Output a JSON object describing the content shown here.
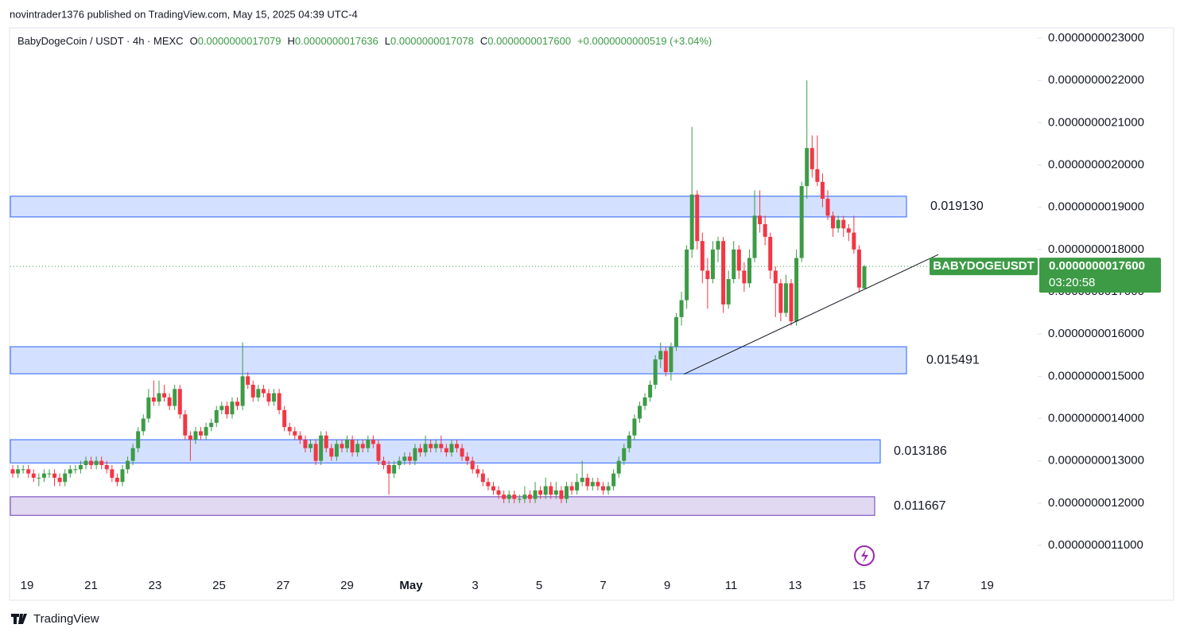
{
  "header": {
    "published": "novintrader1376 published on TradingView.com, May 15, 2025 04:39 UTC-4"
  },
  "footer": {
    "brand": "TradingView"
  },
  "chart_data": {
    "type": "candlestick",
    "symbol_line": "BabyDogeCoin / USDT · 4h · MEXC",
    "ohlc_legend": [
      {
        "key": "O",
        "value": "0.0000000017079"
      },
      {
        "key": "H",
        "value": "0.0000000017636"
      },
      {
        "key": "L",
        "value": "0.0000000017078"
      },
      {
        "key": "C",
        "value": "0.0000000017600"
      }
    ],
    "change": "+0.0000000000519 (+3.04%)",
    "up_color": "#3d9b46",
    "down_color": "#f23645",
    "ylim": [
      1.01e-09,
      2.35e-09
    ],
    "yticks": [
      {
        "value": 2.3e-09,
        "label": "0.0000000023000"
      },
      {
        "value": 2.2e-09,
        "label": "0.0000000022000"
      },
      {
        "value": 2.1e-09,
        "label": "0.0000000021000"
      },
      {
        "value": 2e-09,
        "label": "0.0000000020000"
      },
      {
        "value": 1.9e-09,
        "label": "0.0000000019000"
      },
      {
        "value": 1.8e-09,
        "label": "0.0000000018000"
      },
      {
        "value": 1.7e-09,
        "label": "0.0000000017000"
      },
      {
        "value": 1.6e-09,
        "label": "0.0000000016000"
      },
      {
        "value": 1.5e-09,
        "label": "0.0000000015000"
      },
      {
        "value": 1.4e-09,
        "label": "0.0000000014000"
      },
      {
        "value": 1.3e-09,
        "label": "0.0000000013000"
      },
      {
        "value": 1.2e-09,
        "label": "0.0000000012000"
      },
      {
        "value": 1.1e-09,
        "label": "0.0000000011000"
      }
    ],
    "xtick_labels": [
      "19",
      "21",
      "23",
      "25",
      "27",
      "29",
      "May",
      "3",
      "5",
      "7",
      "9",
      "11",
      "13",
      "15",
      "17",
      "19"
    ],
    "candles": [
      [
        1.28e-09,
        1.29e-09,
        1.26e-09,
        1.27e-09
      ],
      [
        1.27e-09,
        1.29e-09,
        1.26e-09,
        1.28e-09
      ],
      [
        1.28e-09,
        1.29e-09,
        1.27e-09,
        1.28e-09
      ],
      [
        1.28e-09,
        1.29e-09,
        1.26e-09,
        1.27e-09
      ],
      [
        1.27e-09,
        1.28e-09,
        1.25e-09,
        1.26e-09
      ],
      [
        1.26e-09,
        1.27e-09,
        1.24e-09,
        1.26e-09
      ],
      [
        1.26e-09,
        1.28e-09,
        1.25e-09,
        1.27e-09
      ],
      [
        1.27e-09,
        1.28e-09,
        1.26e-09,
        1.27e-09
      ],
      [
        1.27e-09,
        1.28e-09,
        1.24e-09,
        1.26e-09
      ],
      [
        1.26e-09,
        1.27e-09,
        1.24e-09,
        1.25e-09
      ],
      [
        1.25e-09,
        1.28e-09,
        1.24e-09,
        1.27e-09
      ],
      [
        1.27e-09,
        1.29e-09,
        1.26e-09,
        1.28e-09
      ],
      [
        1.28e-09,
        1.29e-09,
        1.27e-09,
        1.28e-09
      ],
      [
        1.28e-09,
        1.3e-09,
        1.27e-09,
        1.29e-09
      ],
      [
        1.29e-09,
        1.31e-09,
        1.28e-09,
        1.3e-09
      ],
      [
        1.3e-09,
        1.31e-09,
        1.28e-09,
        1.29e-09
      ],
      [
        1.29e-09,
        1.31e-09,
        1.28e-09,
        1.3e-09
      ],
      [
        1.3e-09,
        1.31e-09,
        1.28e-09,
        1.29e-09
      ],
      [
        1.29e-09,
        1.3e-09,
        1.27e-09,
        1.28e-09
      ],
      [
        1.28e-09,
        1.29e-09,
        1.25e-09,
        1.26e-09
      ],
      [
        1.26e-09,
        1.27e-09,
        1.24e-09,
        1.25e-09
      ],
      [
        1.25e-09,
        1.29e-09,
        1.24e-09,
        1.28e-09
      ],
      [
        1.28e-09,
        1.31e-09,
        1.27e-09,
        1.3e-09
      ],
      [
        1.3e-09,
        1.34e-09,
        1.29e-09,
        1.33e-09
      ],
      [
        1.33e-09,
        1.38e-09,
        1.32e-09,
        1.37e-09
      ],
      [
        1.37e-09,
        1.41e-09,
        1.36e-09,
        1.4e-09
      ],
      [
        1.4e-09,
        1.47e-09,
        1.39e-09,
        1.45e-09
      ],
      [
        1.45e-09,
        1.49e-09,
        1.43e-09,
        1.44e-09
      ],
      [
        1.44e-09,
        1.49e-09,
        1.43e-09,
        1.46e-09
      ],
      [
        1.46e-09,
        1.48e-09,
        1.44e-09,
        1.45e-09
      ],
      [
        1.45e-09,
        1.46e-09,
        1.42e-09,
        1.43e-09
      ],
      [
        1.43e-09,
        1.48e-09,
        1.42e-09,
        1.47e-09
      ],
      [
        1.47e-09,
        1.48e-09,
        1.4e-09,
        1.41e-09
      ],
      [
        1.41e-09,
        1.42e-09,
        1.35e-09,
        1.36e-09
      ],
      [
        1.36e-09,
        1.37e-09,
        1.3e-09,
        1.35e-09
      ],
      [
        1.35e-09,
        1.38e-09,
        1.34e-09,
        1.37e-09
      ],
      [
        1.37e-09,
        1.38e-09,
        1.35e-09,
        1.36e-09
      ],
      [
        1.36e-09,
        1.39e-09,
        1.35e-09,
        1.38e-09
      ],
      [
        1.38e-09,
        1.4e-09,
        1.37e-09,
        1.39e-09
      ],
      [
        1.39e-09,
        1.43e-09,
        1.38e-09,
        1.42e-09
      ],
      [
        1.42e-09,
        1.44e-09,
        1.41e-09,
        1.43e-09
      ],
      [
        1.43e-09,
        1.44e-09,
        1.4e-09,
        1.41e-09
      ],
      [
        1.41e-09,
        1.45e-09,
        1.4e-09,
        1.44e-09
      ],
      [
        1.44e-09,
        1.45e-09,
        1.42e-09,
        1.43e-09
      ],
      [
        1.43e-09,
        1.58e-09,
        1.42e-09,
        1.5e-09
      ],
      [
        1.5e-09,
        1.51e-09,
        1.47e-09,
        1.48e-09
      ],
      [
        1.48e-09,
        1.49e-09,
        1.44e-09,
        1.45e-09
      ],
      [
        1.45e-09,
        1.48e-09,
        1.44e-09,
        1.47e-09
      ],
      [
        1.47e-09,
        1.48e-09,
        1.45e-09,
        1.46e-09
      ],
      [
        1.46e-09,
        1.47e-09,
        1.43e-09,
        1.44e-09
      ],
      [
        1.44e-09,
        1.47e-09,
        1.43e-09,
        1.46e-09
      ],
      [
        1.46e-09,
        1.47e-09,
        1.41e-09,
        1.42e-09
      ],
      [
        1.42e-09,
        1.43e-09,
        1.37e-09,
        1.38e-09
      ],
      [
        1.38e-09,
        1.39e-09,
        1.36e-09,
        1.37e-09
      ],
      [
        1.37e-09,
        1.38e-09,
        1.35e-09,
        1.36e-09
      ],
      [
        1.36e-09,
        1.37e-09,
        1.34e-09,
        1.35e-09
      ],
      [
        1.35e-09,
        1.36e-09,
        1.32e-09,
        1.33e-09
      ],
      [
        1.33e-09,
        1.35e-09,
        1.32e-09,
        1.34e-09
      ],
      [
        1.34e-09,
        1.35e-09,
        1.29e-09,
        1.3e-09
      ],
      [
        1.3e-09,
        1.37e-09,
        1.29e-09,
        1.36e-09
      ],
      [
        1.36e-09,
        1.37e-09,
        1.32e-09,
        1.33e-09
      ],
      [
        1.33e-09,
        1.34e-09,
        1.3e-09,
        1.31e-09
      ],
      [
        1.31e-09,
        1.35e-09,
        1.3e-09,
        1.34e-09
      ],
      [
        1.34e-09,
        1.35e-09,
        1.32e-09,
        1.33e-09
      ],
      [
        1.33e-09,
        1.36e-09,
        1.32e-09,
        1.35e-09
      ],
      [
        1.35e-09,
        1.36e-09,
        1.31e-09,
        1.32e-09
      ],
      [
        1.32e-09,
        1.35e-09,
        1.31e-09,
        1.34e-09
      ],
      [
        1.34e-09,
        1.35e-09,
        1.32e-09,
        1.33e-09
      ],
      [
        1.33e-09,
        1.36e-09,
        1.32e-09,
        1.35e-09
      ],
      [
        1.35e-09,
        1.36e-09,
        1.33e-09,
        1.34e-09
      ],
      [
        1.34e-09,
        1.35e-09,
        1.29e-09,
        1.3e-09
      ],
      [
        1.3e-09,
        1.31e-09,
        1.28e-09,
        1.29e-09
      ],
      [
        1.29e-09,
        1.3e-09,
        1.22e-09,
        1.27e-09
      ],
      [
        1.27e-09,
        1.3e-09,
        1.26e-09,
        1.29e-09
      ],
      [
        1.29e-09,
        1.31e-09,
        1.28e-09,
        1.3e-09
      ],
      [
        1.3e-09,
        1.32e-09,
        1.29e-09,
        1.31e-09
      ],
      [
        1.31e-09,
        1.32e-09,
        1.29e-09,
        1.3e-09
      ],
      [
        1.3e-09,
        1.34e-09,
        1.29e-09,
        1.33e-09
      ],
      [
        1.33e-09,
        1.34e-09,
        1.31e-09,
        1.32e-09
      ],
      [
        1.32e-09,
        1.36e-09,
        1.31e-09,
        1.34e-09
      ],
      [
        1.34e-09,
        1.35e-09,
        1.32e-09,
        1.33e-09
      ],
      [
        1.33e-09,
        1.35e-09,
        1.32e-09,
        1.34e-09
      ],
      [
        1.34e-09,
        1.36e-09,
        1.32e-09,
        1.33e-09
      ],
      [
        1.33e-09,
        1.34e-09,
        1.31e-09,
        1.32e-09
      ],
      [
        1.32e-09,
        1.35e-09,
        1.31e-09,
        1.34e-09
      ],
      [
        1.34e-09,
        1.35e-09,
        1.32e-09,
        1.33e-09
      ],
      [
        1.33e-09,
        1.34e-09,
        1.3e-09,
        1.31e-09
      ],
      [
        1.31e-09,
        1.32e-09,
        1.29e-09,
        1.3e-09
      ],
      [
        1.3e-09,
        1.31e-09,
        1.27e-09,
        1.28e-09
      ],
      [
        1.28e-09,
        1.29e-09,
        1.26e-09,
        1.27e-09
      ],
      [
        1.27e-09,
        1.28e-09,
        1.24e-09,
        1.25e-09
      ],
      [
        1.25e-09,
        1.26e-09,
        1.23e-09,
        1.24e-09
      ],
      [
        1.24e-09,
        1.25e-09,
        1.22e-09,
        1.23e-09
      ],
      [
        1.23e-09,
        1.24e-09,
        1.21e-09,
        1.22e-09
      ],
      [
        1.22e-09,
        1.23e-09,
        1.2e-09,
        1.21e-09
      ],
      [
        1.21e-09,
        1.23e-09,
        1.2e-09,
        1.22e-09
      ],
      [
        1.22e-09,
        1.23e-09,
        1.2e-09,
        1.21e-09
      ],
      [
        1.21e-09,
        1.22e-09,
        1.2e-09,
        1.21e-09
      ],
      [
        1.21e-09,
        1.24e-09,
        1.2e-09,
        1.22e-09
      ],
      [
        1.22e-09,
        1.23e-09,
        1.2e-09,
        1.21e-09
      ],
      [
        1.21e-09,
        1.25e-09,
        1.2e-09,
        1.23e-09
      ],
      [
        1.23e-09,
        1.24e-09,
        1.21e-09,
        1.22e-09
      ],
      [
        1.22e-09,
        1.26e-09,
        1.21e-09,
        1.24e-09
      ],
      [
        1.24e-09,
        1.25e-09,
        1.21e-09,
        1.22e-09
      ],
      [
        1.22e-09,
        1.25e-09,
        1.21e-09,
        1.23e-09
      ],
      [
        1.23e-09,
        1.24e-09,
        1.2e-09,
        1.21e-09
      ],
      [
        1.21e-09,
        1.25e-09,
        1.2e-09,
        1.24e-09
      ],
      [
        1.24e-09,
        1.25e-09,
        1.22e-09,
        1.23e-09
      ],
      [
        1.23e-09,
        1.27e-09,
        1.22e-09,
        1.25e-09
      ],
      [
        1.25e-09,
        1.3e-09,
        1.24e-09,
        1.26e-09
      ],
      [
        1.26e-09,
        1.27e-09,
        1.23e-09,
        1.24e-09
      ],
      [
        1.24e-09,
        1.26e-09,
        1.23e-09,
        1.25e-09
      ],
      [
        1.25e-09,
        1.26e-09,
        1.23e-09,
        1.24e-09
      ],
      [
        1.24e-09,
        1.25e-09,
        1.22e-09,
        1.23e-09
      ],
      [
        1.23e-09,
        1.25e-09,
        1.22e-09,
        1.24e-09
      ],
      [
        1.24e-09,
        1.28e-09,
        1.23e-09,
        1.27e-09
      ],
      [
        1.27e-09,
        1.31e-09,
        1.26e-09,
        1.3e-09
      ],
      [
        1.3e-09,
        1.34e-09,
        1.29e-09,
        1.33e-09
      ],
      [
        1.33e-09,
        1.37e-09,
        1.32e-09,
        1.36e-09
      ],
      [
        1.36e-09,
        1.41e-09,
        1.35e-09,
        1.4e-09
      ],
      [
        1.4e-09,
        1.44e-09,
        1.39e-09,
        1.43e-09
      ],
      [
        1.43e-09,
        1.46e-09,
        1.42e-09,
        1.45e-09
      ],
      [
        1.45e-09,
        1.49e-09,
        1.44e-09,
        1.48e-09
      ],
      [
        1.48e-09,
        1.55e-09,
        1.47e-09,
        1.54e-09
      ],
      [
        1.54e-09,
        1.58e-09,
        1.52e-09,
        1.56e-09
      ],
      [
        1.56e-09,
        1.57e-09,
        1.5e-09,
        1.51e-09
      ],
      [
        1.51e-09,
        1.58e-09,
        1.49e-09,
        1.57e-09
      ],
      [
        1.57e-09,
        1.65e-09,
        1.56e-09,
        1.64e-09
      ],
      [
        1.64e-09,
        1.7e-09,
        1.62e-09,
        1.68e-09
      ],
      [
        1.68e-09,
        1.81e-09,
        1.66e-09,
        1.8e-09
      ],
      [
        1.8e-09,
        2.09e-09,
        1.78e-09,
        1.93e-09
      ],
      [
        1.93e-09,
        1.94e-09,
        1.8e-09,
        1.82e-09
      ],
      [
        1.82e-09,
        1.84e-09,
        1.72e-09,
        1.75e-09
      ],
      [
        1.75e-09,
        1.78e-09,
        1.66e-09,
        1.73e-09
      ],
      [
        1.73e-09,
        1.82e-09,
        1.72e-09,
        1.8e-09
      ],
      [
        1.8e-09,
        1.83e-09,
        1.77e-09,
        1.82e-09
      ],
      [
        1.82e-09,
        1.83e-09,
        1.65e-09,
        1.67e-09
      ],
      [
        1.67e-09,
        1.75e-09,
        1.66e-09,
        1.73e-09
      ],
      [
        1.73e-09,
        1.82e-09,
        1.72e-09,
        1.8e-09
      ],
      [
        1.8e-09,
        1.81e-09,
        1.73e-09,
        1.75e-09
      ],
      [
        1.75e-09,
        1.77e-09,
        1.7e-09,
        1.72e-09
      ],
      [
        1.72e-09,
        1.8e-09,
        1.71e-09,
        1.78e-09
      ],
      [
        1.78e-09,
        1.94e-09,
        1.77e-09,
        1.88e-09
      ],
      [
        1.88e-09,
        1.94e-09,
        1.84e-09,
        1.86e-09
      ],
      [
        1.86e-09,
        1.88e-09,
        1.81e-09,
        1.83e-09
      ],
      [
        1.83e-09,
        1.84e-09,
        1.73e-09,
        1.75e-09
      ],
      [
        1.75e-09,
        1.76e-09,
        1.64e-09,
        1.72e-09
      ],
      [
        1.72e-09,
        1.73e-09,
        1.63e-09,
        1.65e-09
      ],
      [
        1.65e-09,
        1.74e-09,
        1.64e-09,
        1.72e-09
      ],
      [
        1.72e-09,
        1.73e-09,
        1.62e-09,
        1.63e-09
      ],
      [
        1.63e-09,
        1.8e-09,
        1.62e-09,
        1.78e-09
      ],
      [
        1.78e-09,
        1.96e-09,
        1.77e-09,
        1.95e-09
      ],
      [
        1.95e-09,
        2.2e-09,
        1.92e-09,
        2.04e-09
      ],
      [
        2.04e-09,
        2.07e-09,
        1.97e-09,
        1.99e-09
      ],
      [
        1.99e-09,
        2.07e-09,
        1.95e-09,
        1.96e-09
      ],
      [
        1.96e-09,
        1.98e-09,
        1.9e-09,
        1.92e-09
      ],
      [
        1.92e-09,
        1.94e-09,
        1.87e-09,
        1.88e-09
      ],
      [
        1.88e-09,
        1.89e-09,
        1.83e-09,
        1.85e-09
      ],
      [
        1.85e-09,
        1.88e-09,
        1.84e-09,
        1.87e-09
      ],
      [
        1.87e-09,
        1.88e-09,
        1.83e-09,
        1.85e-09
      ],
      [
        1.85e-09,
        1.86e-09,
        1.82e-09,
        1.84e-09
      ],
      [
        1.84e-09,
        1.88e-09,
        1.79e-09,
        1.8e-09
      ],
      [
        1.8e-09,
        1.81e-09,
        1.7e-09,
        1.71e-09
      ],
      [
        1.7079e-09,
        1.7636e-09,
        1.7078e-09,
        1.76e-09
      ]
    ],
    "zones": [
      {
        "text": "0.019130",
        "ymin": 1.877e-09,
        "ymax": 1.926e-09,
        "color": "#2962ff"
      },
      {
        "text": "0.015491",
        "ymin": 1.506e-09,
        "ymax": 1.57e-09,
        "color": "#2962ff"
      },
      {
        "text": "0.013186",
        "ymin": 1.295e-09,
        "ymax": 1.35e-09,
        "color": "#2962ff"
      },
      {
        "text": "0.011667",
        "ymin": 1.171e-09,
        "ymax": 1.215e-09,
        "color": "#673ab7"
      }
    ],
    "trendline": [
      1.505e-09,
      1.788e-09
    ],
    "last_price": {
      "symbol": "BABYDOGEUSDT",
      "value": 1.76e-09,
      "label": "0.0000000017600",
      "countdown": "03:20:58",
      "color": "#3d9b46"
    }
  }
}
